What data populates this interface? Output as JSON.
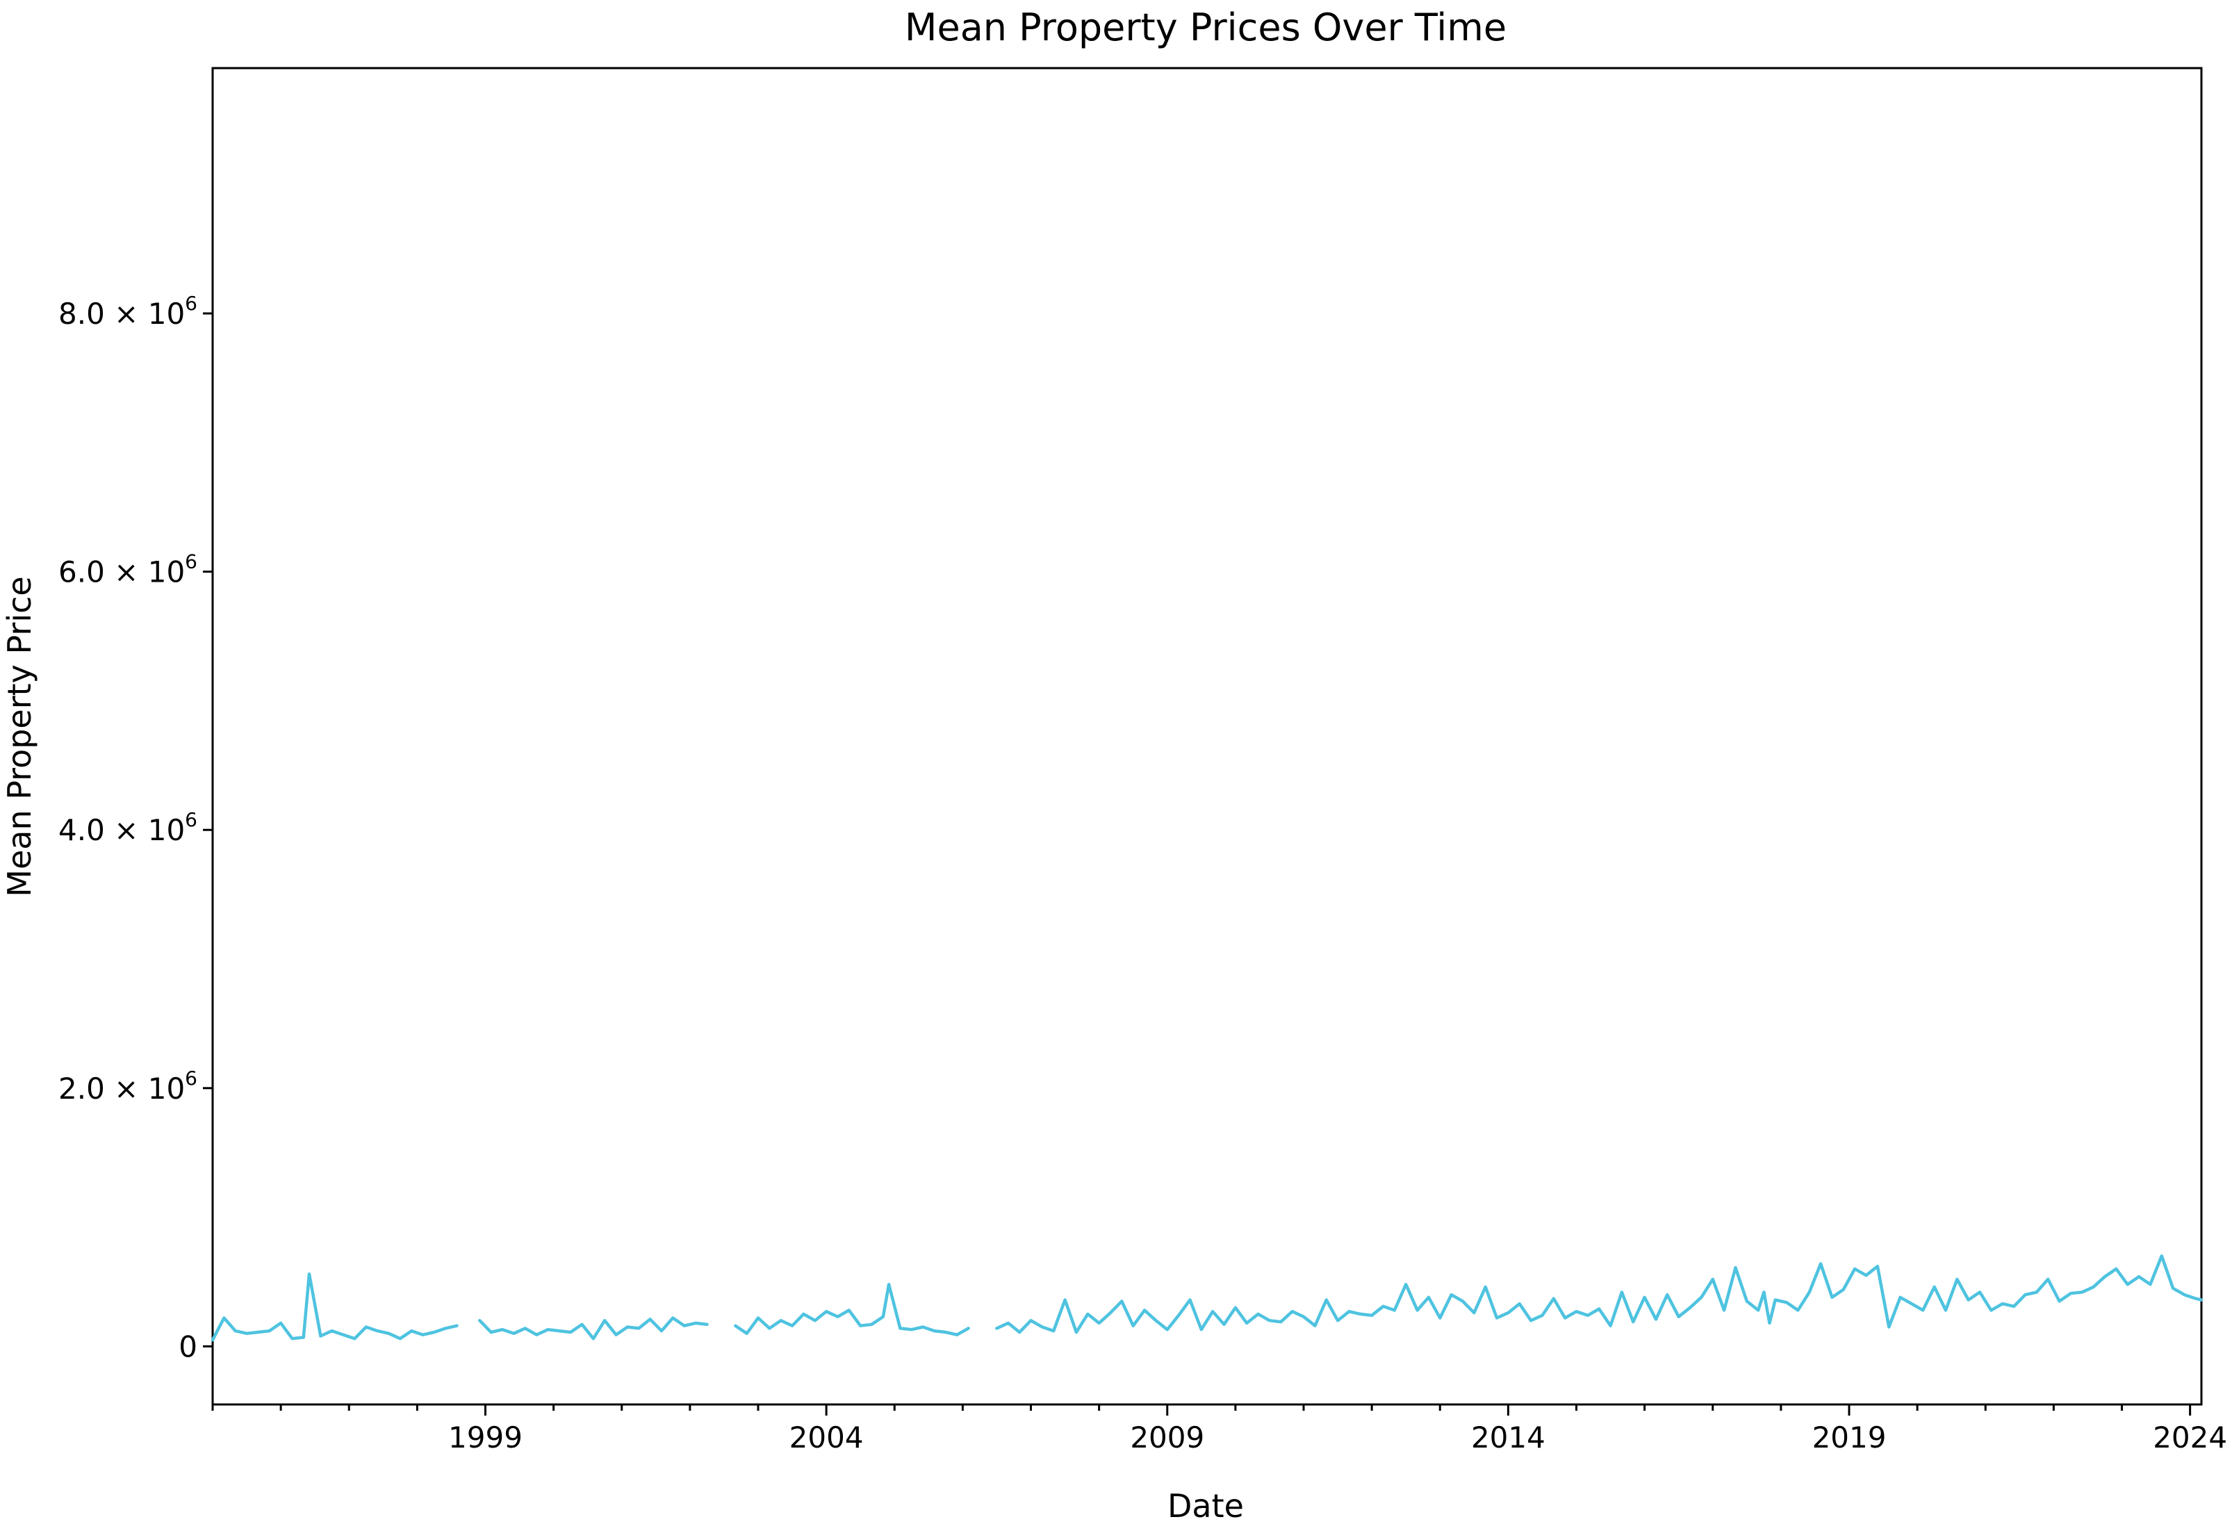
{
  "chart_data": {
    "type": "line",
    "title": "Mean Property Prices Over Time",
    "xlabel": "Date",
    "ylabel": "Mean Property Price",
    "x_range": [
      "1995-01",
      "2024-03"
    ],
    "ylim": [
      -450000,
      9900000
    ],
    "grid": false,
    "legend": "none",
    "x_ticks": [
      {
        "value": "1999-01",
        "label": "1999"
      },
      {
        "value": "2004-01",
        "label": "2004"
      },
      {
        "value": "2009-01",
        "label": "2009"
      },
      {
        "value": "2014-01",
        "label": "2014"
      },
      {
        "value": "2019-01",
        "label": "2019"
      },
      {
        "value": "2024-01",
        "label": "2024"
      }
    ],
    "y_ticks": [
      {
        "value": 0,
        "label": "0",
        "mantissa": "",
        "exponent": ""
      },
      {
        "value": 2000000,
        "label": "2.0 × 10",
        "mantissa": "2.0 × 10",
        "exponent": "6"
      },
      {
        "value": 4000000,
        "label": "4.0 × 10",
        "mantissa": "4.0 × 10",
        "exponent": "6"
      },
      {
        "value": 6000000,
        "label": "6.0 × 10",
        "mantissa": "6.0 × 10",
        "exponent": "6"
      },
      {
        "value": 8000000,
        "label": "8.0 × 10",
        "mantissa": "8.0 × 10",
        "exponent": "6"
      }
    ],
    "series": [
      {
        "color": "#4ec3e0",
        "points": [
          [
            "1995-01",
            50000
          ],
          [
            "1995-03",
            220000
          ],
          [
            "1995-05",
            120000
          ],
          [
            "1995-07",
            100000
          ],
          [
            "1995-09",
            110000
          ],
          [
            "1995-11",
            120000
          ],
          [
            "1996-01",
            180000
          ],
          [
            "1996-03",
            60000
          ],
          [
            "1996-05",
            70000
          ],
          [
            "1996-06",
            560000
          ],
          [
            "1996-08",
            80000
          ],
          [
            "1996-10",
            120000
          ],
          [
            "1996-12",
            90000
          ],
          [
            "1997-02",
            60000
          ],
          [
            "1997-04",
            150000
          ],
          [
            "1997-06",
            120000
          ],
          [
            "1997-08",
            100000
          ],
          [
            "1997-10",
            60000
          ],
          [
            "1997-12",
            120000
          ],
          [
            "1998-02",
            90000
          ],
          [
            "1998-04",
            110000
          ],
          [
            "1998-06",
            140000
          ],
          [
            "1998-08",
            160000
          ],
          [
            "1998-09",
            null
          ],
          [
            "1998-12",
            200000
          ],
          [
            "1999-02",
            110000
          ],
          [
            "1999-04",
            130000
          ],
          [
            "1999-06",
            100000
          ],
          [
            "1999-08",
            140000
          ],
          [
            "1999-10",
            90000
          ],
          [
            "1999-12",
            130000
          ],
          [
            "2000-02",
            120000
          ],
          [
            "2000-04",
            110000
          ],
          [
            "2000-06",
            170000
          ],
          [
            "2000-08",
            60000
          ],
          [
            "2000-10",
            200000
          ],
          [
            "2000-12",
            90000
          ],
          [
            "2001-02",
            150000
          ],
          [
            "2001-04",
            140000
          ],
          [
            "2001-06",
            210000
          ],
          [
            "2001-08",
            120000
          ],
          [
            "2001-10",
            220000
          ],
          [
            "2001-12",
            160000
          ],
          [
            "2002-02",
            180000
          ],
          [
            "2002-04",
            170000
          ],
          [
            "2002-05",
            null
          ],
          [
            "2002-09",
            160000
          ],
          [
            "2002-11",
            100000
          ],
          [
            "2003-01",
            220000
          ],
          [
            "2003-03",
            140000
          ],
          [
            "2003-05",
            200000
          ],
          [
            "2003-07",
            160000
          ],
          [
            "2003-09",
            250000
          ],
          [
            "2003-11",
            200000
          ],
          [
            "2004-01",
            270000
          ],
          [
            "2004-03",
            230000
          ],
          [
            "2004-05",
            280000
          ],
          [
            "2004-07",
            160000
          ],
          [
            "2004-09",
            170000
          ],
          [
            "2004-11",
            230000
          ],
          [
            "2004-12",
            480000
          ],
          [
            "2005-02",
            140000
          ],
          [
            "2005-04",
            130000
          ],
          [
            "2005-06",
            150000
          ],
          [
            "2005-08",
            120000
          ],
          [
            "2005-10",
            110000
          ],
          [
            "2005-12",
            90000
          ],
          [
            "2006-02",
            140000
          ],
          [
            "2006-03",
            null
          ],
          [
            "2006-07",
            140000
          ],
          [
            "2006-09",
            180000
          ],
          [
            "2006-11",
            110000
          ],
          [
            "2007-01",
            200000
          ],
          [
            "2007-03",
            150000
          ],
          [
            "2007-05",
            120000
          ],
          [
            "2007-07",
            360000
          ],
          [
            "2007-09",
            110000
          ],
          [
            "2007-11",
            250000
          ],
          [
            "2008-01",
            180000
          ],
          [
            "2008-03",
            260000
          ],
          [
            "2008-05",
            350000
          ],
          [
            "2008-07",
            160000
          ],
          [
            "2008-09",
            280000
          ],
          [
            "2008-11",
            200000
          ],
          [
            "2009-01",
            130000
          ],
          [
            "2009-03",
            240000
          ],
          [
            "2009-05",
            360000
          ],
          [
            "2009-07",
            130000
          ],
          [
            "2009-09",
            270000
          ],
          [
            "2009-11",
            170000
          ],
          [
            "2010-01",
            300000
          ],
          [
            "2010-03",
            180000
          ],
          [
            "2010-05",
            250000
          ],
          [
            "2010-07",
            200000
          ],
          [
            "2010-09",
            190000
          ],
          [
            "2010-11",
            270000
          ],
          [
            "2011-01",
            230000
          ],
          [
            "2011-03",
            160000
          ],
          [
            "2011-05",
            360000
          ],
          [
            "2011-07",
            200000
          ],
          [
            "2011-09",
            270000
          ],
          [
            "2011-11",
            250000
          ],
          [
            "2012-01",
            240000
          ],
          [
            "2012-03",
            310000
          ],
          [
            "2012-05",
            280000
          ],
          [
            "2012-07",
            480000
          ],
          [
            "2012-09",
            280000
          ],
          [
            "2012-11",
            380000
          ],
          [
            "2013-01",
            220000
          ],
          [
            "2013-03",
            400000
          ],
          [
            "2013-05",
            350000
          ],
          [
            "2013-07",
            260000
          ],
          [
            "2013-09",
            460000
          ],
          [
            "2013-11",
            220000
          ],
          [
            "2014-01",
            260000
          ],
          [
            "2014-03",
            330000
          ],
          [
            "2014-05",
            200000
          ],
          [
            "2014-07",
            240000
          ],
          [
            "2014-09",
            370000
          ],
          [
            "2014-11",
            220000
          ],
          [
            "2015-01",
            270000
          ],
          [
            "2015-03",
            240000
          ],
          [
            "2015-05",
            290000
          ],
          [
            "2015-07",
            160000
          ],
          [
            "2015-09",
            420000
          ],
          [
            "2015-11",
            190000
          ],
          [
            "2016-01",
            380000
          ],
          [
            "2016-03",
            210000
          ],
          [
            "2016-05",
            400000
          ],
          [
            "2016-07",
            230000
          ],
          [
            "2016-09",
            300000
          ],
          [
            "2016-11",
            380000
          ],
          [
            "2017-01",
            520000
          ],
          [
            "2017-03",
            280000
          ],
          [
            "2017-05",
            610000
          ],
          [
            "2017-07",
            350000
          ],
          [
            "2017-09",
            280000
          ],
          [
            "2017-10",
            420000
          ],
          [
            "2017-11",
            180000
          ],
          [
            "2017-12",
            360000
          ],
          [
            "2018-02",
            340000
          ],
          [
            "2018-04",
            280000
          ],
          [
            "2018-06",
            420000
          ],
          [
            "2018-08",
            640000
          ],
          [
            "2018-10",
            380000
          ],
          [
            "2018-12",
            440000
          ],
          [
            "2019-02",
            600000
          ],
          [
            "2019-04",
            550000
          ],
          [
            "2019-06",
            620000
          ],
          [
            "2019-08",
            150000
          ],
          [
            "2019-10",
            380000
          ],
          [
            "2019-12",
            330000
          ],
          [
            "2020-02",
            280000
          ],
          [
            "2020-04",
            460000
          ],
          [
            "2020-06",
            280000
          ],
          [
            "2020-08",
            520000
          ],
          [
            "2020-10",
            360000
          ],
          [
            "2020-12",
            420000
          ],
          [
            "2021-02",
            280000
          ],
          [
            "2021-04",
            330000
          ],
          [
            "2021-06",
            310000
          ],
          [
            "2021-08",
            400000
          ],
          [
            "2021-10",
            420000
          ],
          [
            "2021-12",
            520000
          ],
          [
            "2022-02",
            350000
          ],
          [
            "2022-04",
            410000
          ],
          [
            "2022-06",
            420000
          ],
          [
            "2022-08",
            460000
          ],
          [
            "2022-10",
            540000
          ],
          [
            "2022-12",
            600000
          ],
          [
            "2023-02",
            480000
          ],
          [
            "2023-04",
            540000
          ],
          [
            "2023-06",
            480000
          ],
          [
            "2023-08",
            700000
          ],
          [
            "2023-10",
            450000
          ],
          [
            "2023-12",
            400000
          ],
          [
            "2024-02",
            370000
          ],
          [
            "2024-03",
            360000
          ]
        ]
      }
    ]
  }
}
